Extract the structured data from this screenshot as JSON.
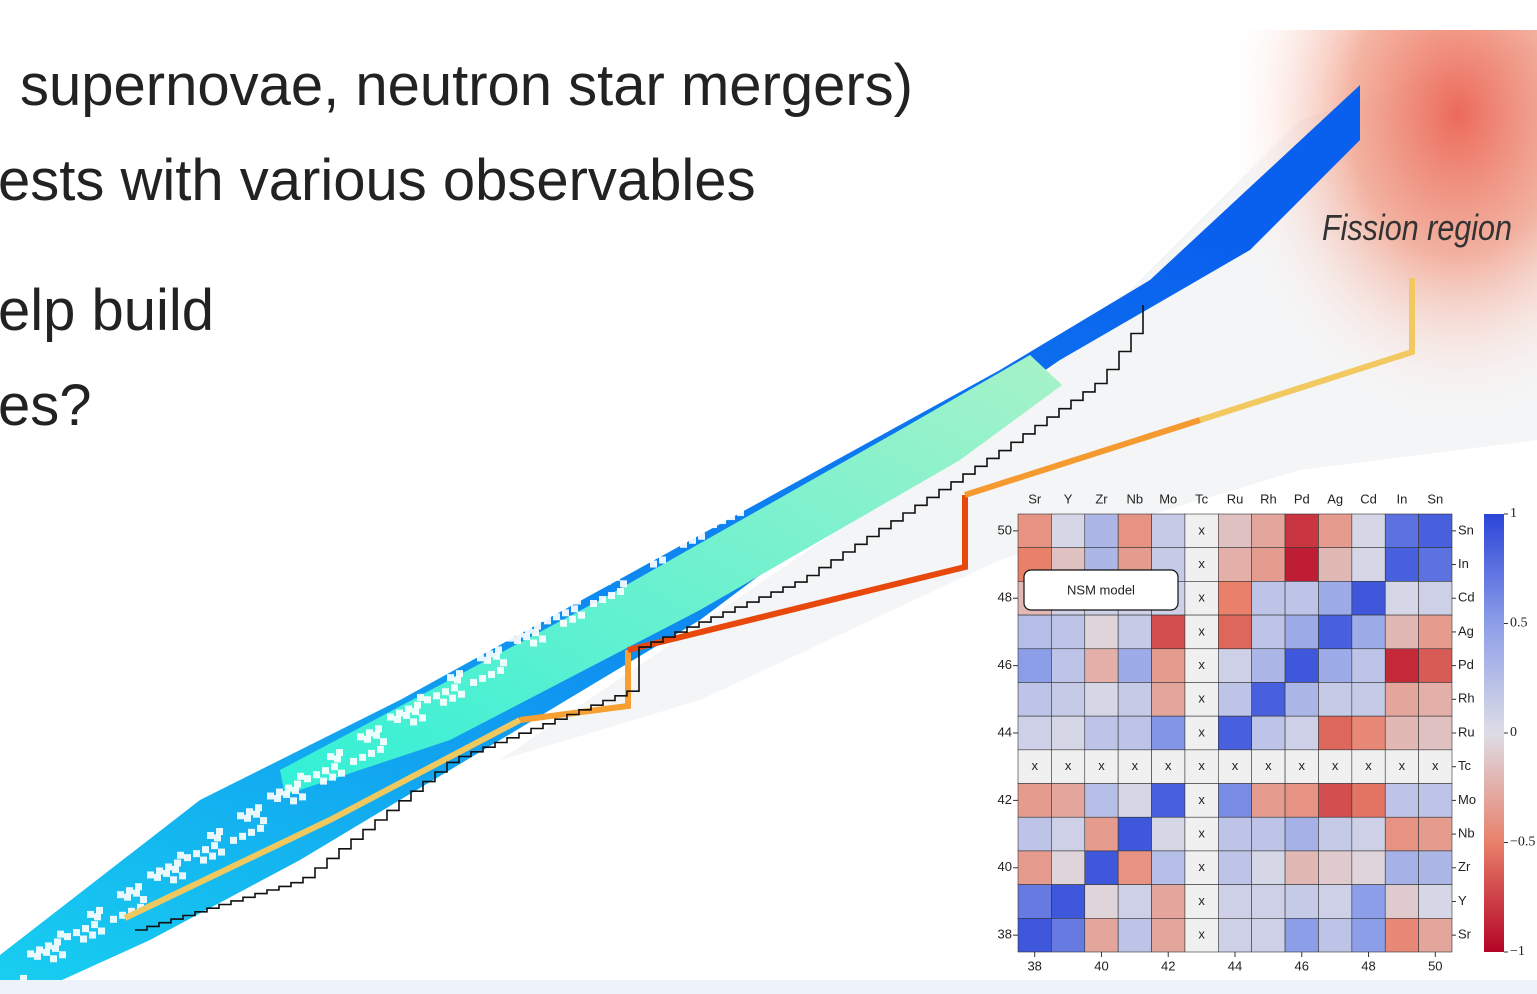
{
  "slide": {
    "lines": [
      "supernovae, neutron star mergers)",
      "ests with various observables",
      "elp build",
      "es?"
    ],
    "fission_label": "Fission region"
  },
  "chart_data": {
    "type": "heatmap",
    "annotation": "NSM model",
    "x_labels_top": [
      "Sr",
      "Y",
      "Zr",
      "Nb",
      "Mo",
      "Tc",
      "Ru",
      "Rh",
      "Pd",
      "Ag",
      "Cd",
      "In",
      "Sn"
    ],
    "y_labels_right": [
      "Sn",
      "In",
      "Cd",
      "Ag",
      "Pd",
      "Rh",
      "Ru",
      "Tc",
      "Mo",
      "Nb",
      "Zr",
      "Y",
      "Sr"
    ],
    "values": [
      [
        -0.4,
        0.05,
        0.3,
        -0.4,
        0.15,
        null,
        -0.15,
        -0.3,
        -0.8,
        -0.35,
        0.05,
        0.75,
        0.85
      ],
      [
        -0.5,
        -0.15,
        0.3,
        -0.35,
        0.15,
        null,
        -0.25,
        -0.35,
        -0.9,
        -0.2,
        0.05,
        0.85,
        0.75
      ],
      [
        -0.2,
        0.1,
        0.1,
        0.1,
        0.1,
        null,
        -0.5,
        0.2,
        0.2,
        0.4,
        0.9,
        0.05,
        0.1
      ],
      [
        0.25,
        0.2,
        -0.05,
        0.15,
        -0.7,
        null,
        -0.6,
        0.2,
        0.4,
        0.85,
        0.4,
        -0.2,
        -0.35
      ],
      [
        0.5,
        0.2,
        -0.25,
        0.4,
        -0.35,
        null,
        0.1,
        0.3,
        0.9,
        0.4,
        0.2,
        -0.85,
        -0.65
      ],
      [
        0.2,
        0.15,
        0.05,
        0.15,
        -0.3,
        null,
        0.2,
        0.85,
        0.3,
        0.15,
        0.15,
        -0.3,
        -0.25
      ],
      [
        0.1,
        0.05,
        0.2,
        0.2,
        0.55,
        null,
        0.85,
        0.2,
        0.1,
        -0.6,
        -0.45,
        -0.2,
        -0.15
      ],
      [
        null,
        null,
        null,
        null,
        null,
        null,
        null,
        null,
        null,
        null,
        null,
        null,
        null
      ],
      [
        -0.35,
        -0.3,
        0.25,
        0.05,
        0.85,
        null,
        0.6,
        -0.35,
        -0.4,
        -0.7,
        -0.55,
        0.2,
        0.2
      ],
      [
        0.2,
        0.1,
        -0.35,
        0.9,
        0.05,
        null,
        0.2,
        0.2,
        0.35,
        0.15,
        0.1,
        -0.4,
        -0.35
      ],
      [
        -0.35,
        -0.05,
        0.9,
        -0.4,
        0.25,
        null,
        0.2,
        0.05,
        -0.2,
        -0.1,
        -0.05,
        0.35,
        0.3
      ],
      [
        0.7,
        0.9,
        -0.05,
        0.1,
        -0.3,
        null,
        0.1,
        0.1,
        0.15,
        0.1,
        0.5,
        -0.1,
        0.05
      ],
      [
        0.9,
        0.7,
        -0.3,
        0.2,
        -0.3,
        null,
        0.1,
        0.1,
        0.5,
        0.2,
        0.5,
        -0.45,
        -0.3
      ]
    ],
    "missing_label": "x",
    "xlim": [
      37.5,
      50.5
    ],
    "xticks": [
      38,
      40,
      42,
      44,
      46,
      48,
      50
    ],
    "ylim": [
      37.5,
      50.5
    ],
    "yticks": [
      38,
      40,
      42,
      44,
      46,
      48,
      50
    ],
    "clim": [
      -1,
      1
    ],
    "cticks": [
      1,
      0.5,
      0,
      {
        "value": -0.5,
        "label": "−0.5"
      },
      {
        "value": -1,
        "label": "−1"
      }
    ],
    "colormap": "coolwarm_r"
  }
}
